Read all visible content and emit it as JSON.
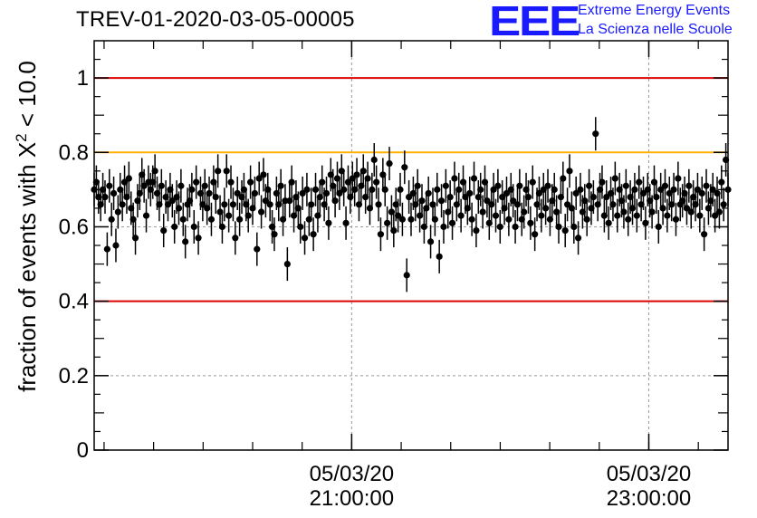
{
  "header": {
    "run_id": "TREV-01-2020-03-05-00005",
    "logo_mark": "EEE",
    "logo_line1": "Extreme Energy Events",
    "logo_line2": "La Scienza nelle Scuole"
  },
  "colors": {
    "threshold_low": "#dd0000",
    "threshold_high": "#dd0000",
    "threshold_mid": "#ffb000",
    "points": "#000000",
    "grid": "#9a9a9a",
    "logo": "#1a1aff"
  },
  "chart_data": {
    "type": "scatter",
    "ylabel_prefix": "fraction of events with",
    "ylabel_symbol": "X",
    "ylabel_exponent": "2",
    "ylabel_suffix": "< 10.0",
    "ylim": [
      0,
      1.1
    ],
    "yticks": [
      0,
      0.2,
      0.4,
      0.6,
      0.8,
      1
    ],
    "ytick_labels": [
      "0",
      "0.2",
      "0.4",
      "0.6",
      "0.8",
      "1"
    ],
    "xlim": [
      "2020-03-05T19:16:00",
      "2020-03-05T23:32:00"
    ],
    "xticks": [
      {
        "t": "2020-03-05T21:00:00",
        "date": "05/03/20",
        "time": "21:00:00"
      },
      {
        "t": "2020-03-05T23:00:00",
        "date": "05/03/20",
        "time": "23:00:00"
      }
    ],
    "grid": true,
    "reference_lines": [
      {
        "y": 1.0,
        "color": "red"
      },
      {
        "y": 0.8,
        "color": "orange"
      },
      {
        "y": 0.4,
        "color": "red"
      }
    ],
    "series": [
      {
        "x_start": "2020-03-05T19:16:00",
        "x_end": "2020-03-05T23:32:00",
        "error": 0.045,
        "y": [
          0.7,
          0.72,
          0.68,
          0.66,
          0.7,
          0.68,
          0.54,
          0.71,
          0.62,
          0.69,
          0.55,
          0.64,
          0.7,
          0.66,
          0.72,
          0.68,
          0.73,
          0.65,
          0.62,
          0.57,
          0.67,
          0.69,
          0.74,
          0.71,
          0.63,
          0.72,
          0.7,
          0.72,
          0.75,
          0.69,
          0.66,
          0.71,
          0.59,
          0.68,
          0.66,
          0.7,
          0.67,
          0.6,
          0.68,
          0.65,
          0.71,
          0.62,
          0.56,
          0.66,
          0.67,
          0.7,
          0.6,
          0.72,
          0.57,
          0.69,
          0.66,
          0.71,
          0.65,
          0.69,
          0.62,
          0.72,
          0.68,
          0.75,
          0.64,
          0.6,
          0.66,
          0.75,
          0.63,
          0.72,
          0.66,
          0.57,
          0.69,
          0.62,
          0.68,
          0.7,
          0.66,
          0.63,
          0.72,
          0.65,
          0.69,
          0.54,
          0.73,
          0.64,
          0.74,
          0.67,
          0.7,
          0.66,
          0.6,
          0.58,
          0.69,
          0.66,
          0.71,
          0.62,
          0.67,
          0.5,
          0.67,
          0.72,
          0.63,
          0.68,
          0.65,
          0.6,
          0.69,
          0.57,
          0.7,
          0.62,
          0.66,
          0.58,
          0.7,
          0.63,
          0.68,
          0.72,
          0.66,
          0.69,
          0.61,
          0.74,
          0.71,
          0.67,
          0.73,
          0.69,
          0.75,
          0.7,
          0.61,
          0.72,
          0.68,
          0.73,
          0.7,
          0.74,
          0.66,
          0.71,
          0.75,
          0.68,
          0.73,
          0.65,
          0.7,
          0.78,
          0.72,
          0.66,
          0.58,
          0.74,
          0.7,
          0.61,
          0.77,
          0.64,
          0.59,
          0.66,
          0.63,
          0.7,
          0.62,
          0.76,
          0.47,
          0.68,
          0.62,
          0.69,
          0.66,
          0.71,
          0.63,
          0.67,
          0.6,
          0.65,
          0.69,
          0.56,
          0.66,
          0.62,
          0.7,
          0.52,
          0.67,
          0.6,
          0.71,
          0.64,
          0.68,
          0.61,
          0.73,
          0.66,
          0.7,
          0.63,
          0.72,
          0.68,
          0.65,
          0.69,
          0.62,
          0.73,
          0.59,
          0.68,
          0.7,
          0.64,
          0.72,
          0.67,
          0.61,
          0.66,
          0.7,
          0.63,
          0.71,
          0.6,
          0.68,
          0.65,
          0.69,
          0.62,
          0.7,
          0.67,
          0.6,
          0.66,
          0.71,
          0.62,
          0.64,
          0.7,
          0.68,
          0.61,
          0.72,
          0.58,
          0.66,
          0.69,
          0.63,
          0.7,
          0.65,
          0.71,
          0.62,
          0.67,
          0.7,
          0.64,
          0.6,
          0.68,
          0.73,
          0.59,
          0.66,
          0.75,
          0.65,
          0.6,
          0.69,
          0.57,
          0.7,
          0.64,
          0.67,
          0.62,
          0.71,
          0.65,
          0.68,
          0.85,
          0.66,
          0.7,
          0.72,
          0.63,
          0.68,
          0.61,
          0.69,
          0.66,
          0.73,
          0.63,
          0.7,
          0.67,
          0.64,
          0.71,
          0.62,
          0.68,
          0.65,
          0.7,
          0.63,
          0.72,
          0.66,
          0.69,
          0.61,
          0.7,
          0.67,
          0.64,
          0.72,
          0.68,
          0.6,
          0.7,
          0.65,
          0.71,
          0.63,
          0.69,
          0.66,
          0.7,
          0.62,
          0.73,
          0.66,
          0.67,
          0.69,
          0.65,
          0.71,
          0.64,
          0.68,
          0.66,
          0.7,
          0.63,
          0.69,
          0.58,
          0.71,
          0.65,
          0.67,
          0.7,
          0.63,
          0.69,
          0.64,
          0.72,
          0.66,
          0.78,
          0.7
        ]
      }
    ]
  }
}
